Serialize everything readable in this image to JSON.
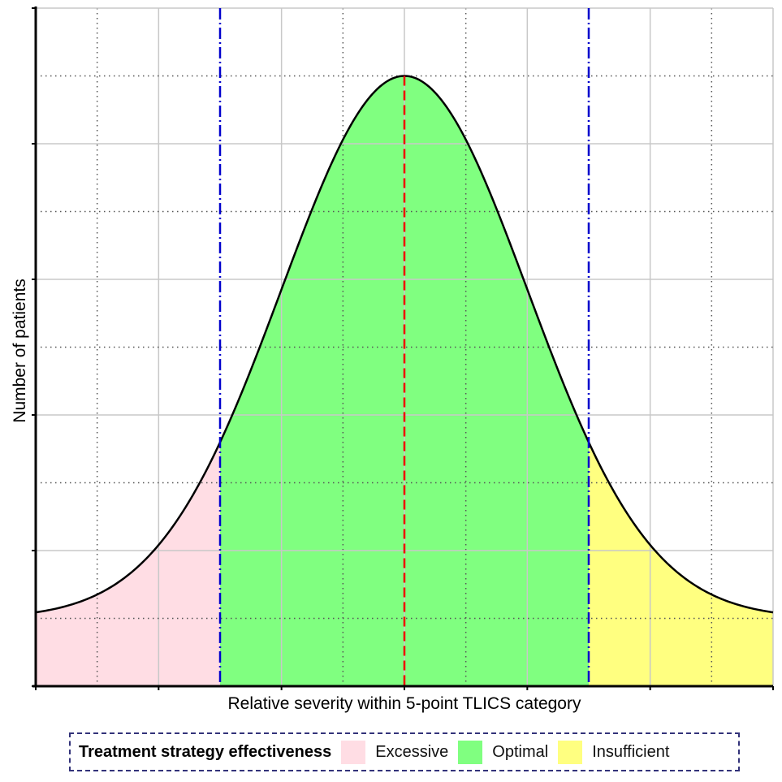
{
  "chart_data": {
    "type": "area",
    "title": "",
    "xlabel": "Relative severity within 5-point TLICS category",
    "ylabel": "Number of patients",
    "xlim": [
      -3,
      3
    ],
    "ylim": [
      0,
      10
    ],
    "grid": true,
    "curve": {
      "baseline": 1.0,
      "amplitude": 8.0,
      "sigma": 1.0,
      "center": 0
    },
    "boundaries": {
      "lower": -1.5,
      "center": 0,
      "upper": 1.5
    },
    "regions": [
      {
        "name": "Excessive",
        "from": -3,
        "to": -1.5,
        "color": "#ffdde4"
      },
      {
        "name": "Optimal",
        "from": -1.5,
        "to": 1.5,
        "color": "#80ff80"
      },
      {
        "name": "Insufficient",
        "from": 1.5,
        "to": 3,
        "color": "#ffff80"
      }
    ],
    "legend": {
      "title": "Treatment strategy effectiveness",
      "placement": "bottom",
      "entries": [
        "Excessive",
        "Optimal",
        "Insufficient"
      ]
    },
    "colors": {
      "boundary": "#0000cc",
      "center": "#ee0000",
      "curve": "#000000"
    }
  }
}
